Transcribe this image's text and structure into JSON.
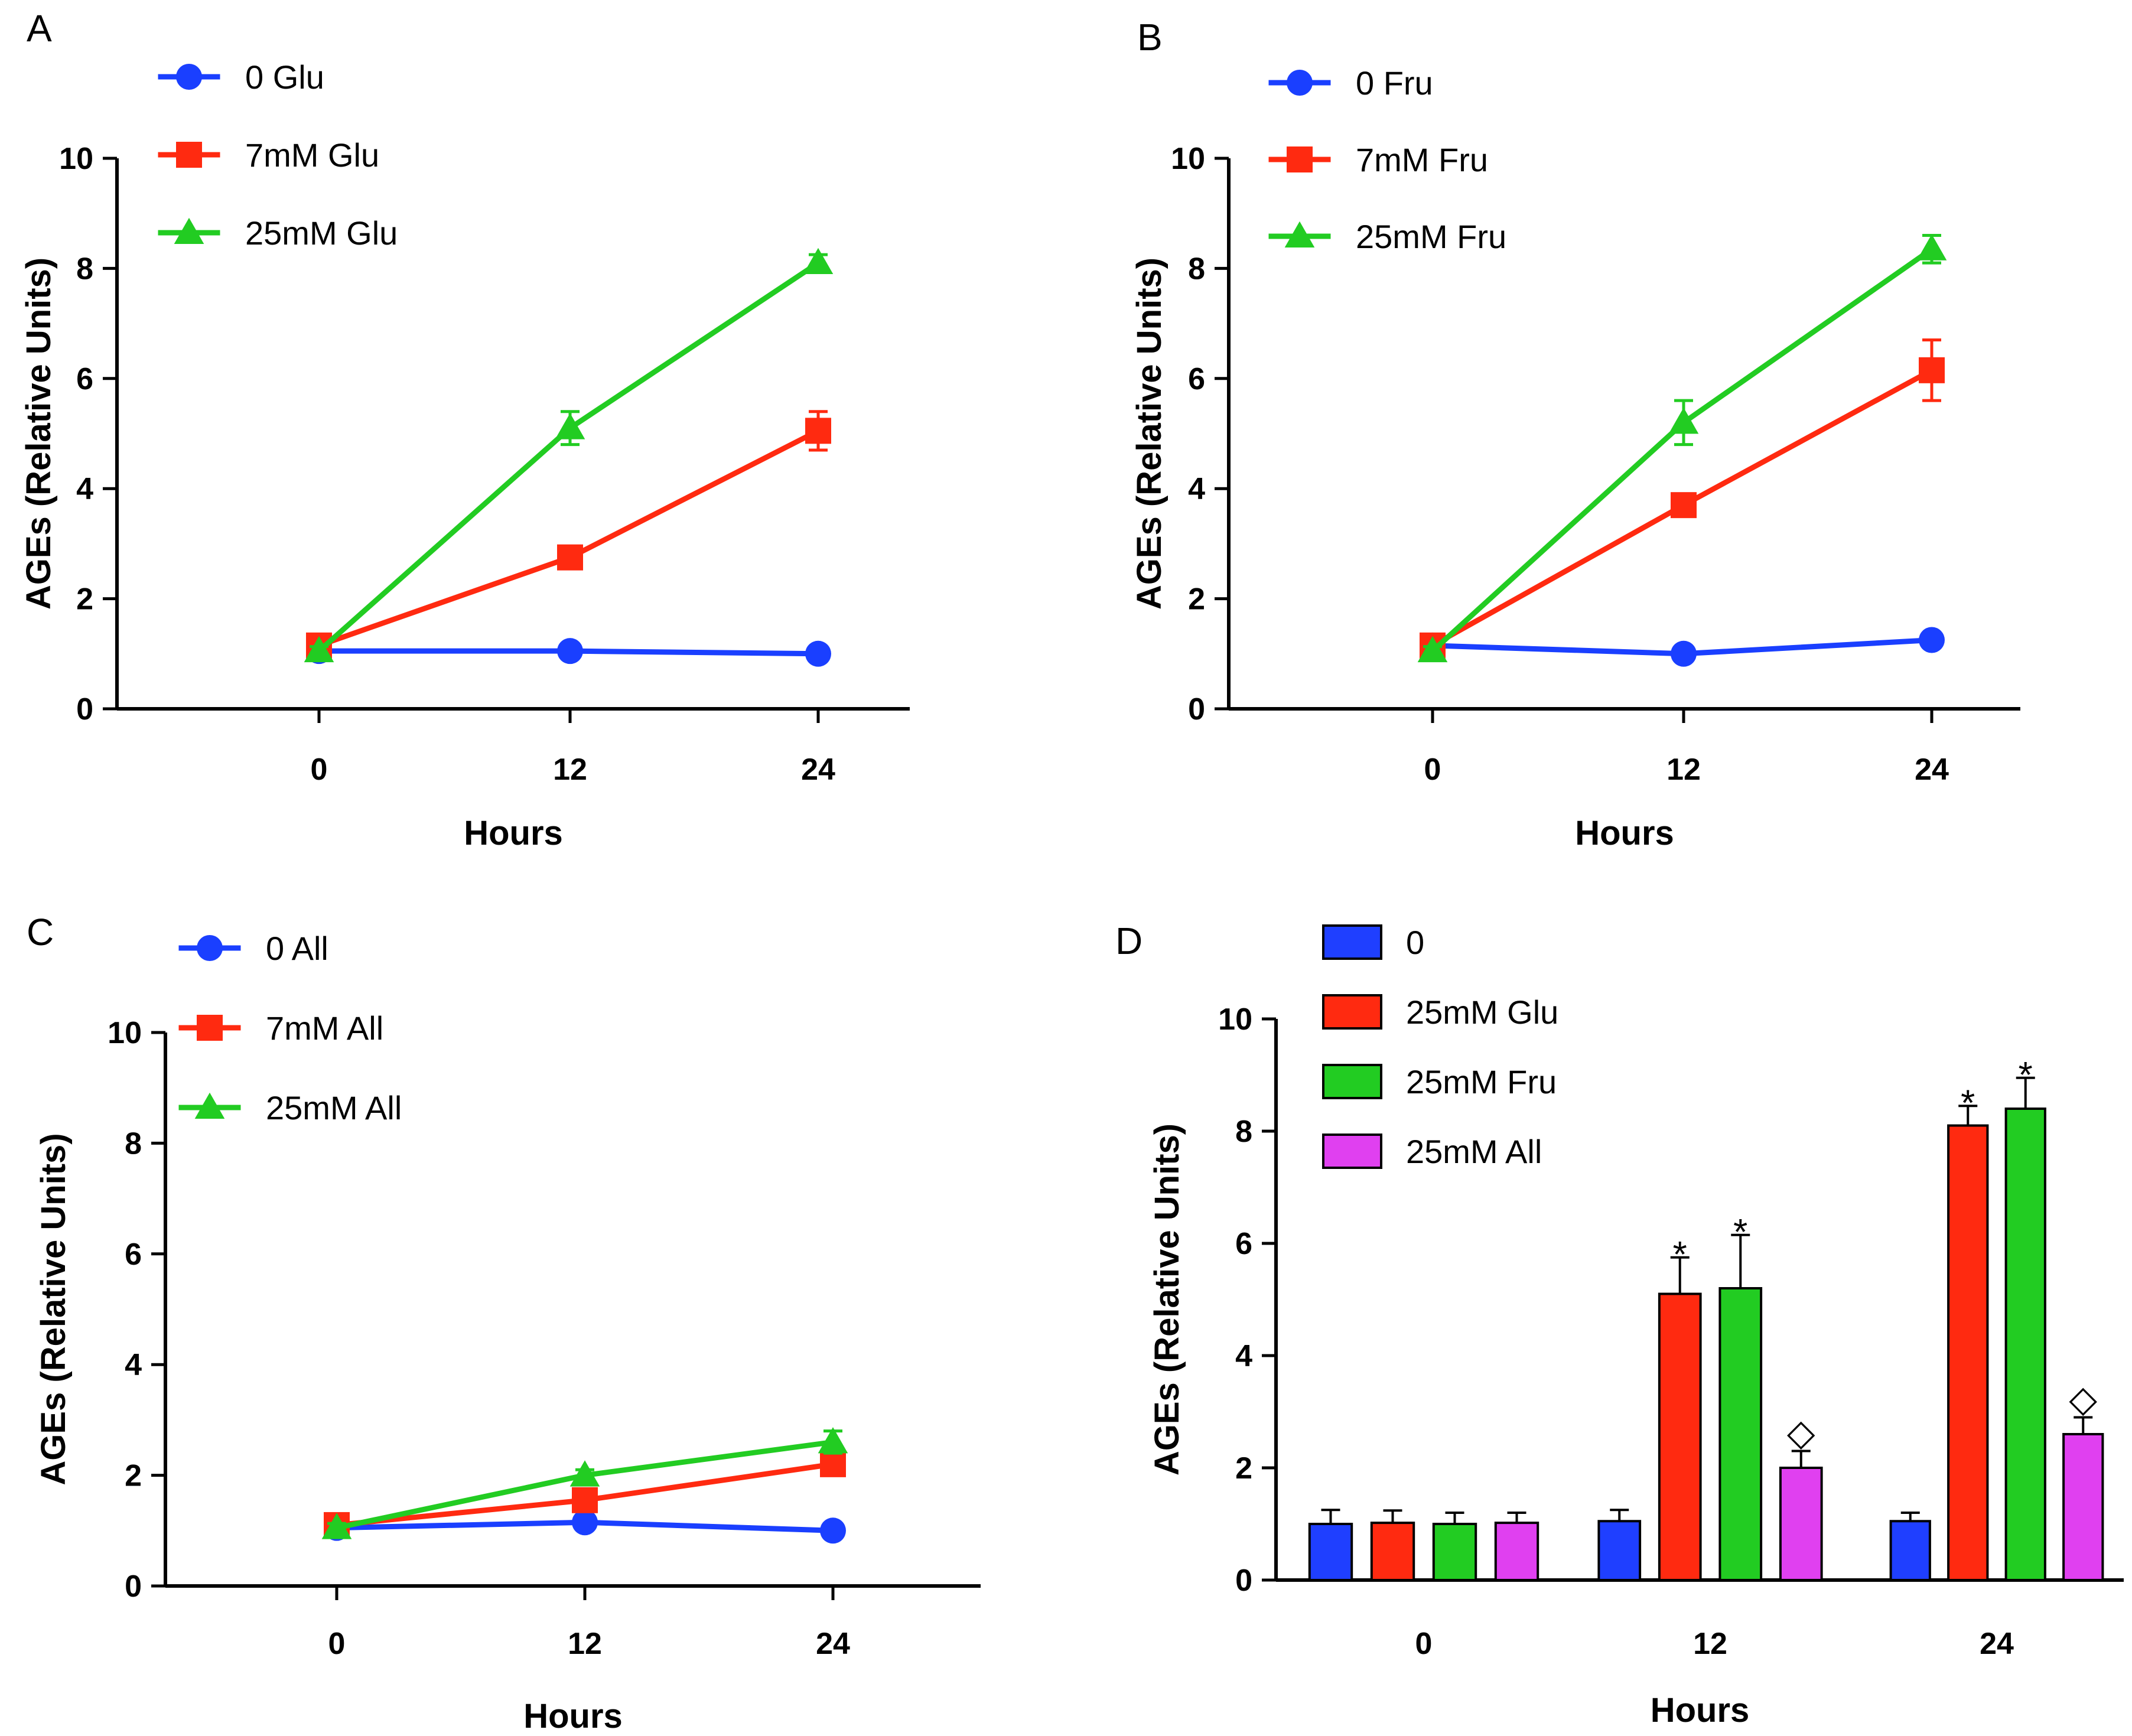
{
  "chart_data": [
    {
      "panel": "A",
      "type": "line",
      "x": [
        0,
        12,
        24
      ],
      "xlabel": "Hours",
      "ylabel": "AGEs (Relative Units)",
      "ylim": [
        0,
        10
      ],
      "yticks": [
        0,
        2,
        4,
        6,
        8,
        10
      ],
      "series": [
        {
          "name": "0 Glu",
          "color": "#1a3fff",
          "marker": "circle",
          "values": [
            1.05,
            1.05,
            1.0
          ],
          "errors": [
            0.08,
            0.05,
            0.05
          ]
        },
        {
          "name": "7mM Glu",
          "color": "#ff2a10",
          "marker": "square",
          "values": [
            1.15,
            2.75,
            5.05
          ],
          "errors": [
            0.1,
            0.12,
            0.35
          ]
        },
        {
          "name": "25mM Glu",
          "color": "#22cc22",
          "marker": "triangle",
          "values": [
            1.05,
            5.1,
            8.1
          ],
          "errors": [
            0.08,
            0.3,
            0.15
          ]
        }
      ]
    },
    {
      "panel": "B",
      "type": "line",
      "x": [
        0,
        12,
        24
      ],
      "xlabel": "Hours",
      "ylabel": "AGEs (Relative Units)",
      "ylim": [
        0,
        10
      ],
      "yticks": [
        0,
        2,
        4,
        6,
        8,
        10
      ],
      "series": [
        {
          "name": "0 Fru",
          "color": "#1a3fff",
          "marker": "circle",
          "values": [
            1.15,
            1.0,
            1.25
          ],
          "errors": [
            0.08,
            0.05,
            0.08
          ]
        },
        {
          "name": "7mM Fru",
          "color": "#ff2a10",
          "marker": "square",
          "values": [
            1.15,
            3.7,
            6.15
          ],
          "errors": [
            0.1,
            0.12,
            0.55
          ]
        },
        {
          "name": "25mM Fru",
          "color": "#22cc22",
          "marker": "triangle",
          "values": [
            1.05,
            5.2,
            8.35
          ],
          "errors": [
            0.08,
            0.4,
            0.25
          ]
        }
      ]
    },
    {
      "panel": "C",
      "type": "line",
      "x": [
        0,
        12,
        24
      ],
      "xlabel": "Hours",
      "ylabel": "AGEs (Relative Units)",
      "ylim": [
        0,
        10
      ],
      "yticks": [
        0,
        2,
        4,
        6,
        8,
        10
      ],
      "series": [
        {
          "name": "0 All",
          "color": "#1a3fff",
          "marker": "circle",
          "values": [
            1.05,
            1.15,
            1.0
          ],
          "errors": [
            0.08,
            0.05,
            0.05
          ]
        },
        {
          "name": "7mM All",
          "color": "#ff2a10",
          "marker": "square",
          "values": [
            1.1,
            1.55,
            2.2
          ],
          "errors": [
            0.1,
            0.1,
            0.12
          ]
        },
        {
          "name": "25mM All",
          "color": "#22cc22",
          "marker": "triangle",
          "values": [
            1.05,
            2.0,
            2.6
          ],
          "errors": [
            0.08,
            0.1,
            0.2
          ]
        }
      ]
    },
    {
      "panel": "D",
      "type": "bar",
      "categories": [
        "0",
        "12",
        "24"
      ],
      "xlabel": "Hours",
      "ylabel": "AGEs (Relative Units)",
      "ylim": [
        0,
        10
      ],
      "yticks": [
        0,
        2,
        4,
        6,
        8,
        10
      ],
      "series": [
        {
          "name": "0",
          "color": "#1f3fff",
          "values": [
            1.0,
            1.05,
            1.05
          ],
          "errors": [
            0.25,
            0.2,
            0.15
          ],
          "marks": [
            "",
            "",
            ""
          ]
        },
        {
          "name": "25mM Glu",
          "color": "#ff2a10",
          "values": [
            1.02,
            5.1,
            8.1
          ],
          "errors": [
            0.22,
            0.65,
            0.35
          ],
          "marks": [
            "",
            "*",
            "*"
          ]
        },
        {
          "name": "25mM Fru",
          "color": "#22cc22",
          "values": [
            1.0,
            5.2,
            8.4
          ],
          "errors": [
            0.2,
            0.95,
            0.55
          ],
          "marks": [
            "",
            "*",
            "*"
          ]
        },
        {
          "name": "25mM All",
          "color": "#e040f0",
          "values": [
            1.02,
            2.0,
            2.6
          ],
          "errors": [
            0.18,
            0.3,
            0.3
          ],
          "marks": [
            "",
            "◇",
            "◇"
          ]
        }
      ]
    }
  ]
}
